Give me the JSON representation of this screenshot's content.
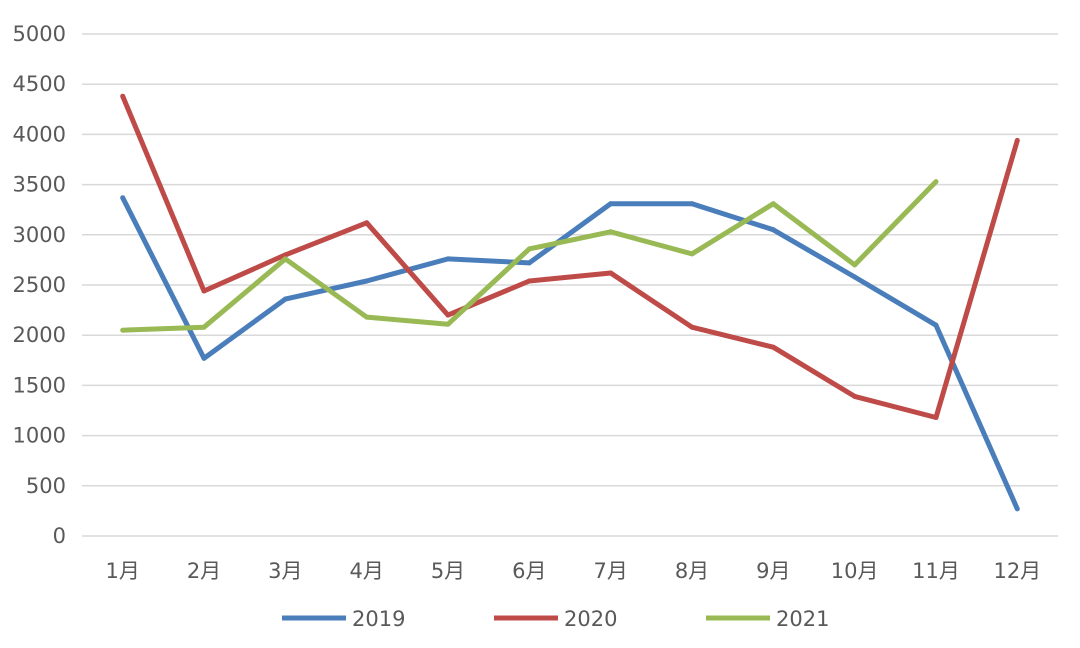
{
  "chart_data": {
    "type": "line",
    "title": "",
    "xlabel": "",
    "ylabel": "",
    "categories": [
      "1月",
      "2月",
      "3月",
      "4月",
      "5月",
      "6月",
      "7月",
      "8月",
      "9月",
      "10月",
      "11月",
      "12月"
    ],
    "ylim": [
      0,
      5000
    ],
    "yticks": [
      0,
      500,
      1000,
      1500,
      2000,
      2500,
      3000,
      3500,
      4000,
      4500,
      5000
    ],
    "grid": true,
    "legend_position": "bottom",
    "series": [
      {
        "name": "2019",
        "color": "#4a7ebb",
        "values": [
          3370,
          1770,
          2360,
          2540,
          2760,
          2720,
          3310,
          3310,
          3050,
          2580,
          2100,
          270
        ]
      },
      {
        "name": "2020",
        "color": "#be4b48",
        "values": [
          4380,
          2440,
          2800,
          3120,
          2200,
          2540,
          2620,
          2080,
          1880,
          1390,
          1180,
          3940
        ]
      },
      {
        "name": "2021",
        "color": "#98b954",
        "values": [
          2050,
          2080,
          2760,
          2180,
          2110,
          2860,
          3030,
          2810,
          3310,
          2700,
          3530,
          null
        ]
      }
    ]
  }
}
